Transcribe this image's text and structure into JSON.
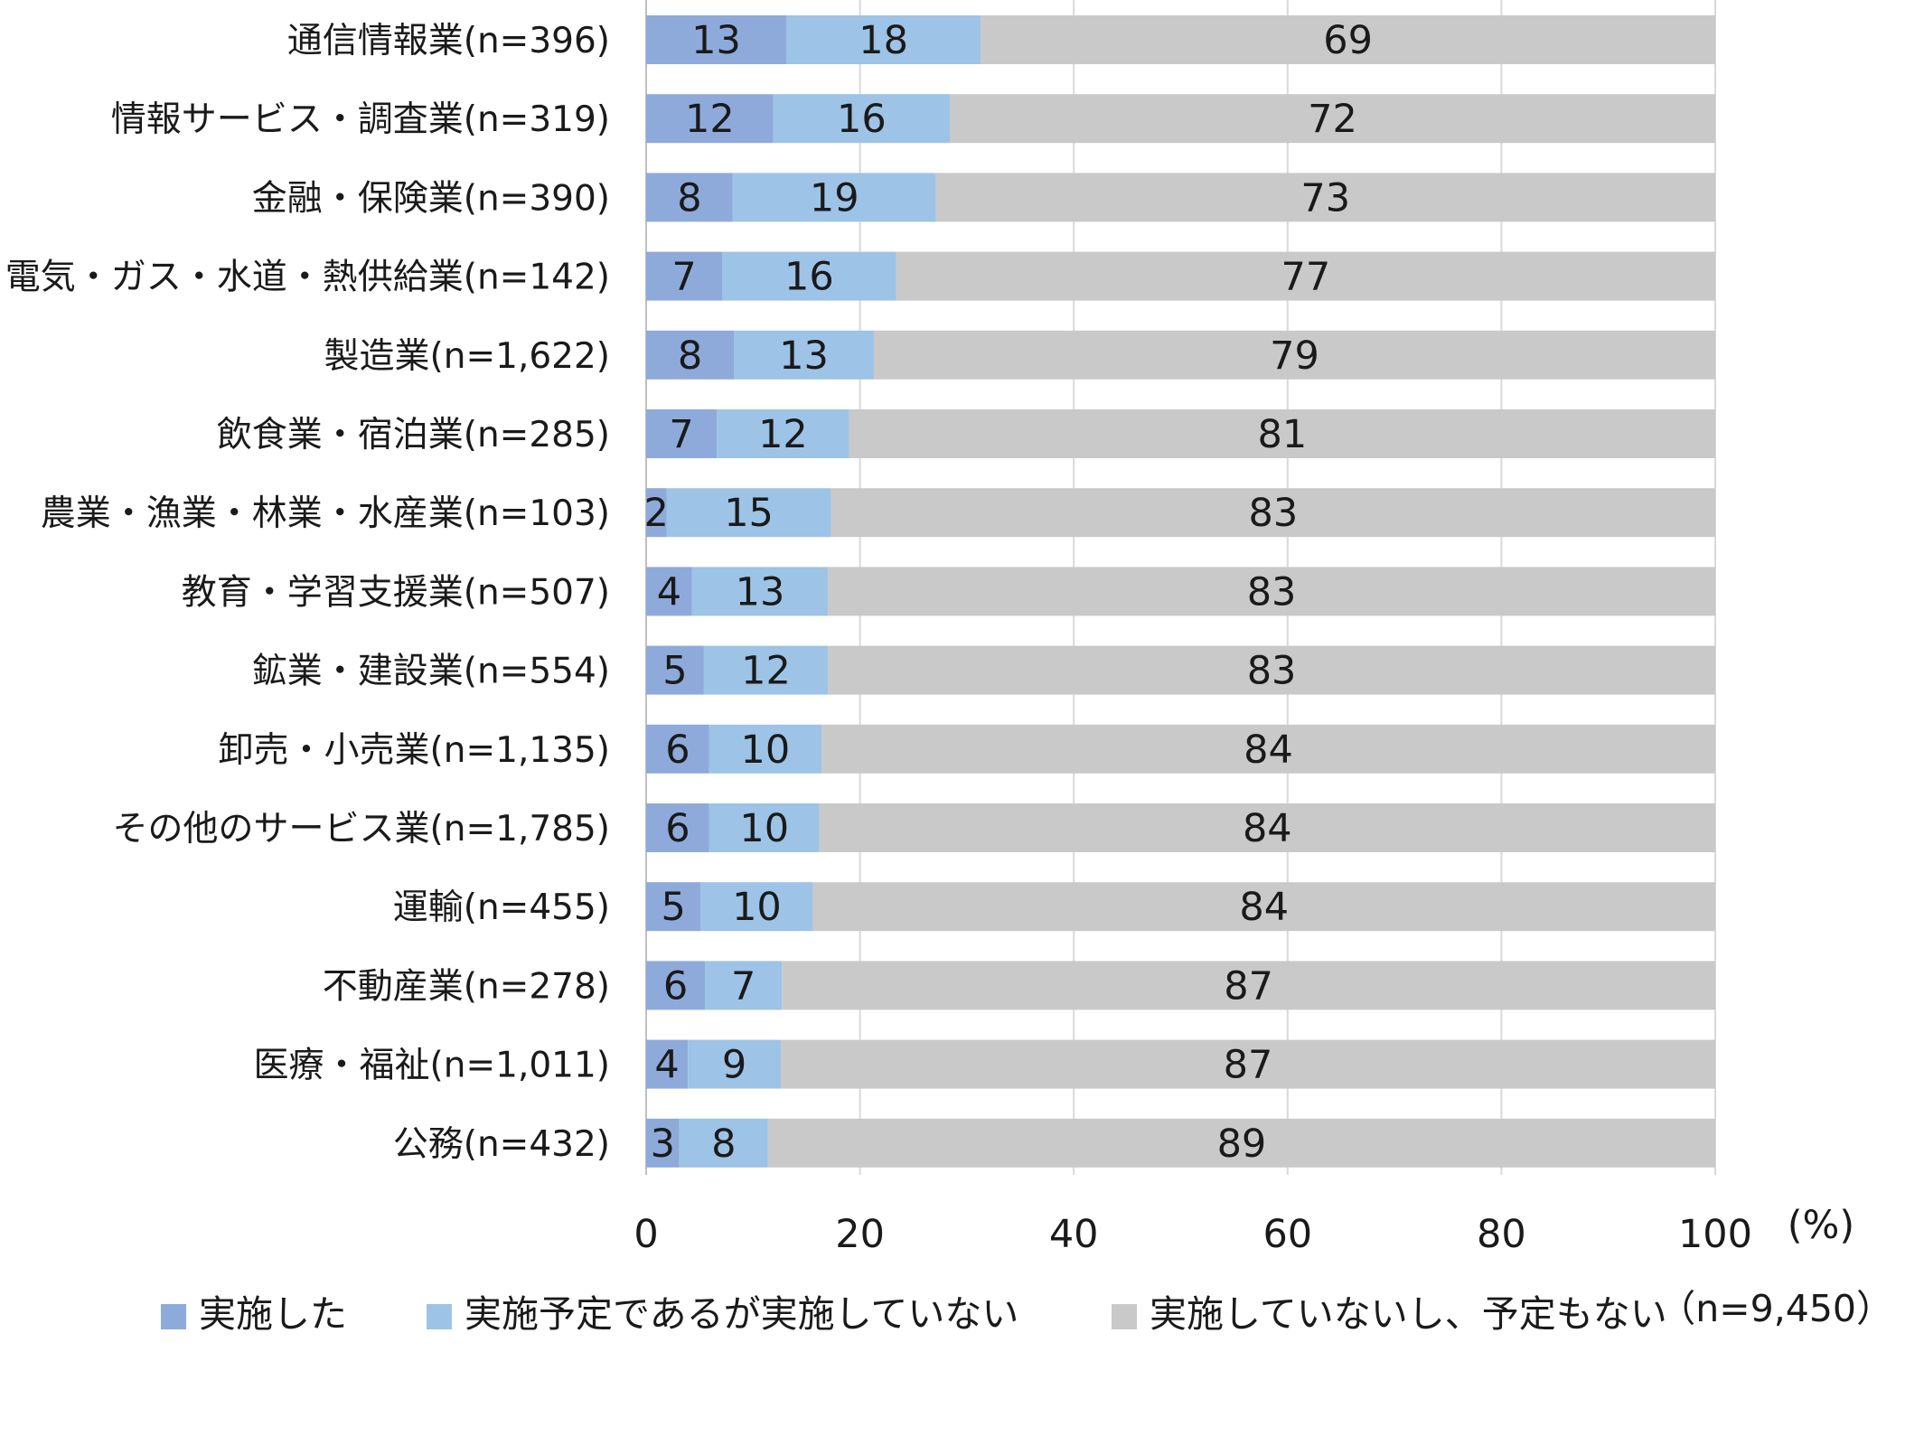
{
  "chart_data": {
    "type": "bar",
    "orientation": "horizontal",
    "stacked": true,
    "categories": [
      "通信情報業(n=396)",
      "情報サービス・調査業(n=319)",
      "金融・保険業(n=390)",
      "電気・ガス・水道・熱供給業(n=142)",
      "製造業(n=1,622)",
      "飲食業・宿泊業(n=285)",
      "農業・漁業・林業・水産業(n=103)",
      "教育・学習支援業(n=507)",
      "鉱業・建設業(n=554)",
      "卸売・小売業(n=1,135)",
      "その他のサービス業(n=1,785)",
      "運輸(n=455)",
      "不動産業(n=278)",
      "医療・福祉(n=1,011)",
      "公務(n=432)"
    ],
    "series": [
      {
        "name": "実施した",
        "color": "#8eaadb",
        "values": [
          13,
          12,
          8,
          7,
          8,
          7,
          2,
          4,
          5,
          6,
          6,
          5,
          6,
          4,
          3
        ],
        "exact": [
          13.1,
          11.9,
          8.1,
          7.1,
          8.2,
          6.6,
          1.9,
          4.3,
          5.4,
          5.9,
          5.9,
          5.1,
          5.5,
          3.9,
          3.1
        ]
      },
      {
        "name": "実施予定であるが実施していない",
        "color": "#9dc3e6",
        "values": [
          18,
          16,
          19,
          16,
          13,
          12,
          15,
          13,
          12,
          10,
          10,
          10,
          7,
          9,
          8
        ],
        "exact": [
          18.2,
          16.5,
          19.0,
          16.3,
          13.1,
          12.4,
          15.4,
          12.7,
          11.6,
          10.5,
          10.3,
          10.5,
          7.2,
          8.7,
          8.3
        ]
      },
      {
        "name": "実施していないし、予定もない",
        "color": "#c9c9c9",
        "values": [
          69,
          72,
          73,
          77,
          79,
          81,
          83,
          83,
          83,
          84,
          84,
          84,
          87,
          87,
          89
        ],
        "exact": [
          68.7,
          71.6,
          72.9,
          76.6,
          78.7,
          81.0,
          82.7,
          83.0,
          83.0,
          83.6,
          83.8,
          84.4,
          87.3,
          87.4,
          88.6
        ]
      }
    ],
    "xlim": [
      0,
      100
    ],
    "xticks": [
      "0",
      "20",
      "40",
      "60",
      "80",
      "100"
    ],
    "unit_label": "(%)",
    "total_note": "（n=9,450）",
    "grid": true,
    "legend_position": "bottom"
  }
}
